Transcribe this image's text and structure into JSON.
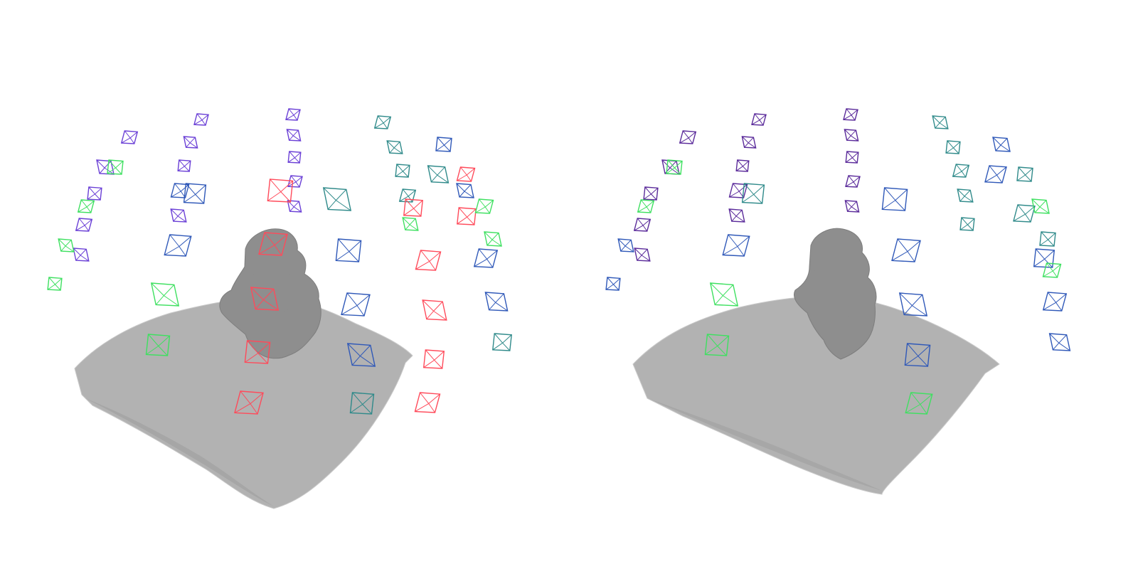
{
  "colors": {
    "background": "#ffffff",
    "mesh_fill": "#b2b2b2",
    "mesh_dark": "#8e8e8e",
    "mesh_light": "#c9c9c9",
    "camera_blue": "#2f58b8",
    "camera_violet": "#6a3fd6",
    "camera_purple": "#5a2a9a",
    "camera_teal": "#2f8a8a",
    "camera_green": "#3ee060",
    "camera_red": "#ff4a5a"
  },
  "panels": [
    {
      "id": "left",
      "cameras": [
        {
          "color": "camera_violet"
        },
        {
          "color": "camera_violet"
        },
        {
          "color": "camera_violet"
        },
        {
          "color": "camera_violet"
        },
        {
          "color": "camera_violet"
        },
        {
          "color": "camera_green"
        },
        {
          "color": "camera_green"
        },
        {
          "color": "camera_green"
        },
        {
          "color": "camera_green"
        },
        {
          "color": "camera_violet"
        },
        {
          "color": "camera_violet"
        },
        {
          "color": "camera_violet"
        },
        {
          "color": "camera_blue"
        },
        {
          "color": "camera_violet"
        },
        {
          "color": "camera_blue"
        },
        {
          "color": "camera_blue"
        },
        {
          "color": "camera_green"
        },
        {
          "color": "camera_green"
        },
        {
          "color": "camera_violet"
        },
        {
          "color": "camera_violet"
        },
        {
          "color": "camera_violet"
        },
        {
          "color": "camera_violet"
        },
        {
          "color": "camera_violet"
        },
        {
          "color": "camera_red"
        },
        {
          "color": "camera_red"
        },
        {
          "color": "camera_red"
        },
        {
          "color": "camera_red"
        },
        {
          "color": "camera_red"
        },
        {
          "color": "camera_teal"
        },
        {
          "color": "camera_blue"
        },
        {
          "color": "camera_blue"
        },
        {
          "color": "camera_blue"
        },
        {
          "color": "camera_teal"
        },
        {
          "color": "camera_teal"
        },
        {
          "color": "camera_teal"
        },
        {
          "color": "camera_teal"
        },
        {
          "color": "camera_teal"
        },
        {
          "color": "camera_green"
        },
        {
          "color": "camera_red"
        },
        {
          "color": "camera_red"
        },
        {
          "color": "camera_red"
        },
        {
          "color": "camera_red"
        },
        {
          "color": "camera_red"
        },
        {
          "color": "camera_teal"
        },
        {
          "color": "camera_blue"
        },
        {
          "color": "camera_red"
        },
        {
          "color": "camera_blue"
        },
        {
          "color": "camera_red"
        },
        {
          "color": "camera_blue"
        },
        {
          "color": "camera_blue"
        },
        {
          "color": "camera_teal"
        },
        {
          "color": "camera_green"
        },
        {
          "color": "camera_green"
        }
      ]
    },
    {
      "id": "right",
      "cameras": [
        {
          "color": "camera_purple"
        },
        {
          "color": "camera_purple"
        },
        {
          "color": "camera_purple"
        },
        {
          "color": "camera_purple"
        },
        {
          "color": "camera_purple"
        },
        {
          "color": "camera_green"
        },
        {
          "color": "camera_green"
        },
        {
          "color": "camera_blue"
        },
        {
          "color": "camera_blue"
        },
        {
          "color": "camera_purple"
        },
        {
          "color": "camera_purple"
        },
        {
          "color": "camera_purple"
        },
        {
          "color": "camera_purple"
        },
        {
          "color": "camera_purple"
        },
        {
          "color": "camera_teal"
        },
        {
          "color": "camera_blue"
        },
        {
          "color": "camera_green"
        },
        {
          "color": "camera_green"
        },
        {
          "color": "camera_purple"
        },
        {
          "color": "camera_purple"
        },
        {
          "color": "camera_purple"
        },
        {
          "color": "camera_purple"
        },
        {
          "color": "camera_purple"
        },
        {
          "color": "camera_blue"
        },
        {
          "color": "camera_blue"
        },
        {
          "color": "camera_blue"
        },
        {
          "color": "camera_blue"
        },
        {
          "color": "camera_green"
        },
        {
          "color": "camera_teal"
        },
        {
          "color": "camera_teal"
        },
        {
          "color": "camera_teal"
        },
        {
          "color": "camera_teal"
        },
        {
          "color": "camera_teal"
        },
        {
          "color": "camera_blue"
        },
        {
          "color": "camera_blue"
        },
        {
          "color": "camera_teal"
        },
        {
          "color": "camera_teal"
        },
        {
          "color": "camera_green"
        },
        {
          "color": "camera_blue"
        },
        {
          "color": "camera_blue"
        },
        {
          "color": "camera_blue"
        },
        {
          "color": "camera_teal"
        },
        {
          "color": "camera_green"
        }
      ]
    }
  ]
}
